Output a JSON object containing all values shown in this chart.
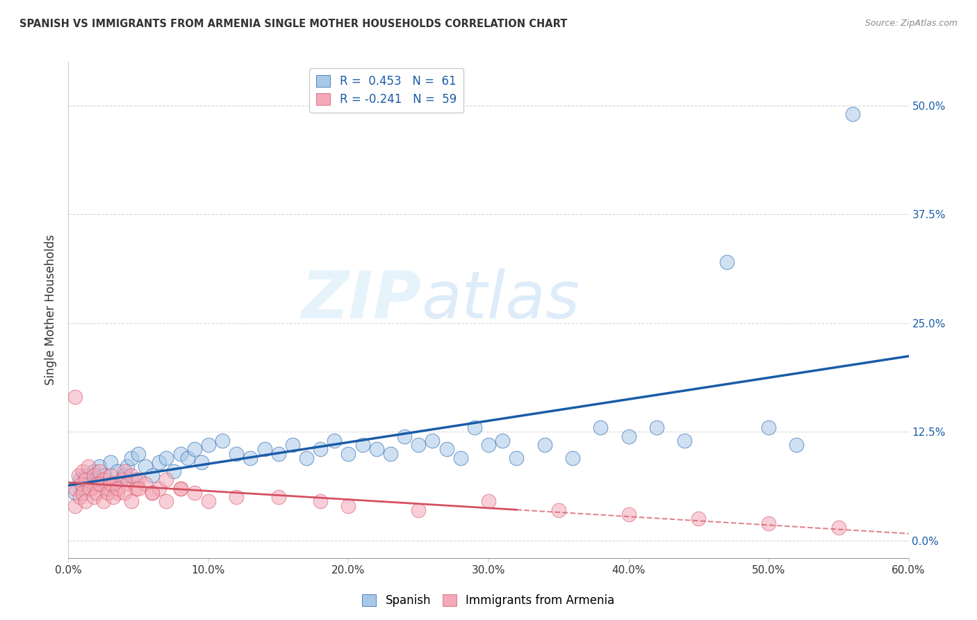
{
  "title": "SPANISH VS IMMIGRANTS FROM ARMENIA SINGLE MOTHER HOUSEHOLDS CORRELATION CHART",
  "source": "Source: ZipAtlas.com",
  "ylabel": "Single Mother Households",
  "xlim": [
    0.0,
    0.6
  ],
  "ylim": [
    -0.02,
    0.55
  ],
  "xticks": [
    0.0,
    0.1,
    0.2,
    0.3,
    0.4,
    0.5,
    0.6
  ],
  "xticklabels": [
    "0.0%",
    "10.0%",
    "20.0%",
    "30.0%",
    "40.0%",
    "50.0%",
    "60.0%"
  ],
  "yticks": [
    0.0,
    0.125,
    0.25,
    0.375,
    0.5
  ],
  "yticklabels": [
    "0.0%",
    "12.5%",
    "25.0%",
    "37.5%",
    "50.0%"
  ],
  "legend1_label": "Spanish",
  "legend2_label": "Immigrants from Armenia",
  "R1": 0.453,
  "N1": 61,
  "R2": -0.241,
  "N2": 59,
  "blue_color": "#a8c8e8",
  "pink_color": "#f4a8b8",
  "blue_line_color": "#1a5ca8",
  "pink_line_color": "#d45060",
  "watermark_zip": "ZIP",
  "watermark_atlas": "atlas",
  "blue_x": [
    0.005,
    0.008,
    0.01,
    0.012,
    0.015,
    0.018,
    0.02,
    0.022,
    0.025,
    0.028,
    0.03,
    0.032,
    0.035,
    0.038,
    0.04,
    0.042,
    0.045,
    0.048,
    0.05,
    0.055,
    0.06,
    0.065,
    0.07,
    0.075,
    0.08,
    0.085,
    0.09,
    0.095,
    0.1,
    0.11,
    0.12,
    0.13,
    0.14,
    0.15,
    0.16,
    0.17,
    0.18,
    0.19,
    0.2,
    0.21,
    0.22,
    0.23,
    0.24,
    0.25,
    0.26,
    0.27,
    0.28,
    0.29,
    0.3,
    0.31,
    0.32,
    0.34,
    0.36,
    0.38,
    0.4,
    0.42,
    0.44,
    0.47,
    0.5,
    0.52,
    0.56
  ],
  "blue_y": [
    0.055,
    0.07,
    0.06,
    0.075,
    0.065,
    0.08,
    0.07,
    0.085,
    0.075,
    0.06,
    0.09,
    0.065,
    0.08,
    0.07,
    0.075,
    0.085,
    0.095,
    0.07,
    0.1,
    0.085,
    0.075,
    0.09,
    0.095,
    0.08,
    0.1,
    0.095,
    0.105,
    0.09,
    0.11,
    0.115,
    0.1,
    0.095,
    0.105,
    0.1,
    0.11,
    0.095,
    0.105,
    0.115,
    0.1,
    0.11,
    0.105,
    0.1,
    0.12,
    0.11,
    0.115,
    0.105,
    0.095,
    0.13,
    0.11,
    0.115,
    0.095,
    0.11,
    0.095,
    0.13,
    0.12,
    0.13,
    0.115,
    0.32,
    0.13,
    0.11,
    0.49
  ],
  "pink_x": [
    0.005,
    0.007,
    0.009,
    0.01,
    0.012,
    0.014,
    0.016,
    0.018,
    0.02,
    0.022,
    0.025,
    0.027,
    0.03,
    0.032,
    0.035,
    0.038,
    0.04,
    0.042,
    0.045,
    0.048,
    0.05,
    0.055,
    0.06,
    0.065,
    0.07,
    0.08,
    0.005,
    0.008,
    0.01,
    0.012,
    0.015,
    0.018,
    0.02,
    0.022,
    0.025,
    0.028,
    0.03,
    0.032,
    0.035,
    0.04,
    0.045,
    0.05,
    0.06,
    0.07,
    0.08,
    0.09,
    0.1,
    0.12,
    0.15,
    0.18,
    0.2,
    0.25,
    0.3,
    0.35,
    0.4,
    0.45,
    0.5,
    0.55,
    0.005
  ],
  "pink_y": [
    0.06,
    0.075,
    0.065,
    0.08,
    0.07,
    0.085,
    0.06,
    0.075,
    0.065,
    0.08,
    0.07,
    0.06,
    0.075,
    0.065,
    0.055,
    0.07,
    0.08,
    0.065,
    0.075,
    0.06,
    0.07,
    0.065,
    0.055,
    0.06,
    0.07,
    0.06,
    0.04,
    0.05,
    0.055,
    0.045,
    0.06,
    0.05,
    0.055,
    0.065,
    0.045,
    0.055,
    0.065,
    0.05,
    0.06,
    0.055,
    0.045,
    0.06,
    0.055,
    0.045,
    0.06,
    0.055,
    0.045,
    0.05,
    0.05,
    0.045,
    0.04,
    0.035,
    0.045,
    0.035,
    0.03,
    0.025,
    0.02,
    0.015,
    0.165
  ],
  "blue_trend": [
    0.05,
    0.2
  ],
  "pink_trend_solid_end": 0.32,
  "pink_trend": [
    0.068,
    -0.015
  ]
}
